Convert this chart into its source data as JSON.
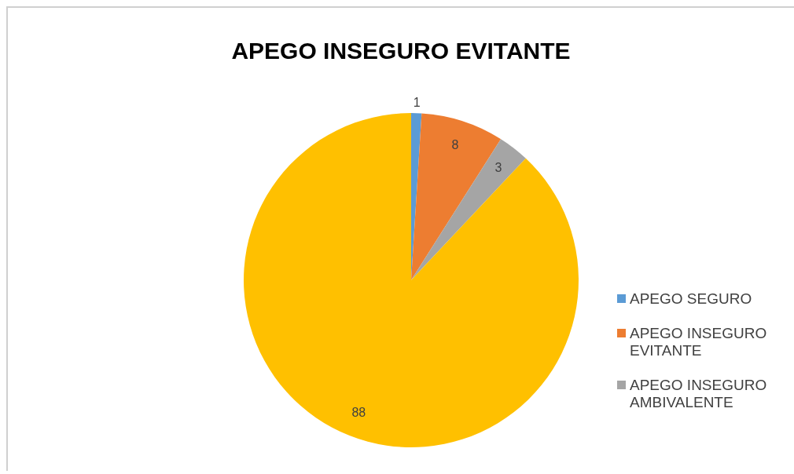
{
  "chart_data": {
    "type": "pie",
    "title": "APEGO INSEGURO EVITANTE",
    "categories": [
      "APEGO SEGURO",
      "APEGO INSEGURO EVITANTE",
      "APEGO INSEGURO AMBIVALENTE",
      null
    ],
    "values": [
      1,
      8,
      3,
      88
    ],
    "colors": [
      "#5b9bd5",
      "#ed7d31",
      "#a5a5a5",
      "#ffc000"
    ],
    "data_labels": true,
    "legend": "right"
  }
}
